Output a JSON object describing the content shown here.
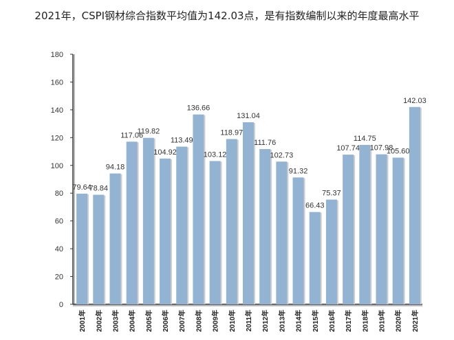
{
  "chart_data": {
    "type": "bar",
    "title": "2021年，CSPI钢材综合指数平均值为142.03点，是有指数编制以来的年度最高水平",
    "xlabel": "",
    "ylabel": "",
    "ylim": [
      0,
      180
    ],
    "yticks": [
      0,
      20,
      40,
      60,
      80,
      100,
      120,
      140,
      160,
      180
    ],
    "categories": [
      "2001年",
      "2002年",
      "2003年",
      "2004年",
      "2005年",
      "2006年",
      "2007年",
      "2008年",
      "2009年",
      "2010年",
      "2011年",
      "2012年",
      "2013年",
      "2014年",
      "2015年",
      "2016年",
      "2017年",
      "2018年",
      "2019年",
      "2020年",
      "2021年"
    ],
    "values": [
      79.64,
      78.84,
      94.18,
      117.06,
      119.82,
      104.92,
      113.49,
      136.66,
      103.12,
      118.97,
      131.04,
      111.76,
      102.73,
      91.32,
      66.43,
      75.37,
      107.74,
      114.75,
      107.98,
      105.6,
      142.03
    ],
    "value_labels": [
      "79.64",
      "78.84",
      "94.18",
      "117.06",
      "119.82",
      "104.92",
      "113.49",
      "136.66",
      "103.12",
      "118.97",
      "131.04",
      "111.76",
      "102.73",
      "91.32",
      "66.43",
      "75.37",
      "107.74",
      "114.75",
      "107.98",
      "105.60",
      "142.03"
    ],
    "bar_color": "#93b3d3",
    "grid": false,
    "legend": "none"
  }
}
